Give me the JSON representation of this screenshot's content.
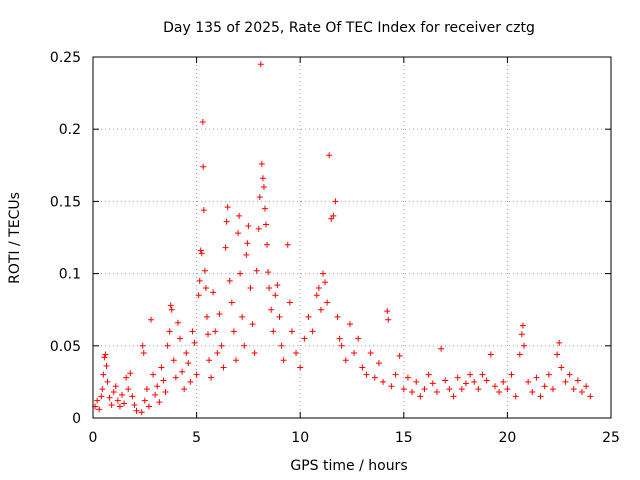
{
  "chart_data": {
    "type": "scatter",
    "title": "Day 135 of 2025, Rate Of TEC Index for receiver cztg",
    "xlabel": "GPS time / hours",
    "ylabel": "ROTI / TECUs",
    "xlim": [
      0,
      25
    ],
    "ylim": [
      0,
      0.25
    ],
    "x_ticks": [
      0,
      5,
      10,
      15,
      20,
      25
    ],
    "y_ticks": [
      0,
      0.05,
      0.1,
      0.15,
      0.2,
      0.25
    ],
    "x_tick_labels": [
      "0",
      "5",
      "10",
      "15",
      "20",
      "25"
    ],
    "y_tick_labels": [
      "0",
      "0.05",
      "0.1",
      "0.15",
      "0.2",
      "0.25"
    ],
    "grid": true,
    "marker": "plus",
    "color": "#ff0000",
    "series": [
      {
        "name": "ROTI",
        "points": [
          [
            0.1,
            0.008
          ],
          [
            0.2,
            0.012
          ],
          [
            0.3,
            0.006
          ],
          [
            0.4,
            0.015
          ],
          [
            0.45,
            0.02
          ],
          [
            0.5,
            0.03
          ],
          [
            0.55,
            0.042
          ],
          [
            0.6,
            0.044
          ],
          [
            0.65,
            0.036
          ],
          [
            0.7,
            0.025
          ],
          [
            0.8,
            0.014
          ],
          [
            0.9,
            0.009
          ],
          [
            1.0,
            0.018
          ],
          [
            1.1,
            0.022
          ],
          [
            1.2,
            0.012
          ],
          [
            1.3,
            0.008
          ],
          [
            1.4,
            0.016
          ],
          [
            1.5,
            0.01
          ],
          [
            1.6,
            0.028
          ],
          [
            1.7,
            0.02
          ],
          [
            1.8,
            0.031
          ],
          [
            1.9,
            0.015
          ],
          [
            2.0,
            0.009
          ],
          [
            2.1,
            0.005
          ],
          [
            2.35,
            0.004
          ],
          [
            2.4,
            0.05
          ],
          [
            2.45,
            0.045
          ],
          [
            2.5,
            0.012
          ],
          [
            2.6,
            0.02
          ],
          [
            2.7,
            0.008
          ],
          [
            2.8,
            0.068
          ],
          [
            2.9,
            0.03
          ],
          [
            3.0,
            0.016
          ],
          [
            3.1,
            0.022
          ],
          [
            3.2,
            0.011
          ],
          [
            3.3,
            0.035
          ],
          [
            3.4,
            0.026
          ],
          [
            3.5,
            0.018
          ],
          [
            3.6,
            0.05
          ],
          [
            3.7,
            0.06
          ],
          [
            3.75,
            0.078
          ],
          [
            3.8,
            0.075
          ],
          [
            3.9,
            0.04
          ],
          [
            4.0,
            0.028
          ],
          [
            4.1,
            0.066
          ],
          [
            4.2,
            0.055
          ],
          [
            4.3,
            0.032
          ],
          [
            4.4,
            0.02
          ],
          [
            4.5,
            0.045
          ],
          [
            4.6,
            0.038
          ],
          [
            4.7,
            0.025
          ],
          [
            4.8,
            0.06
          ],
          [
            4.9,
            0.052
          ],
          [
            5.0,
            0.03
          ],
          [
            5.1,
            0.085
          ],
          [
            5.15,
            0.095
          ],
          [
            5.2,
            0.116
          ],
          [
            5.25,
            0.114
          ],
          [
            5.3,
            0.205
          ],
          [
            5.32,
            0.174
          ],
          [
            5.35,
            0.144
          ],
          [
            5.4,
            0.102
          ],
          [
            5.45,
            0.09
          ],
          [
            5.5,
            0.07
          ],
          [
            5.55,
            0.058
          ],
          [
            5.6,
            0.04
          ],
          [
            5.7,
            0.028
          ],
          [
            5.8,
            0.087
          ],
          [
            5.9,
            0.06
          ],
          [
            6.0,
            0.045
          ],
          [
            6.1,
            0.072
          ],
          [
            6.2,
            0.05
          ],
          [
            6.3,
            0.035
          ],
          [
            6.4,
            0.118
          ],
          [
            6.45,
            0.136
          ],
          [
            6.5,
            0.146
          ],
          [
            6.6,
            0.095
          ],
          [
            6.7,
            0.08
          ],
          [
            6.8,
            0.06
          ],
          [
            6.9,
            0.04
          ],
          [
            7.0,
            0.128
          ],
          [
            7.05,
            0.14
          ],
          [
            7.1,
            0.1
          ],
          [
            7.2,
            0.07
          ],
          [
            7.3,
            0.05
          ],
          [
            7.4,
            0.113
          ],
          [
            7.45,
            0.121
          ],
          [
            7.5,
            0.133
          ],
          [
            7.6,
            0.09
          ],
          [
            7.7,
            0.065
          ],
          [
            7.8,
            0.045
          ],
          [
            7.9,
            0.102
          ],
          [
            8.0,
            0.131
          ],
          [
            8.05,
            0.153
          ],
          [
            8.1,
            0.245
          ],
          [
            8.15,
            0.176
          ],
          [
            8.2,
            0.166
          ],
          [
            8.25,
            0.16
          ],
          [
            8.3,
            0.145
          ],
          [
            8.35,
            0.134
          ],
          [
            8.4,
            0.12
          ],
          [
            8.45,
            0.101
          ],
          [
            8.5,
            0.09
          ],
          [
            8.6,
            0.075
          ],
          [
            8.7,
            0.06
          ],
          [
            8.8,
            0.085
          ],
          [
            8.9,
            0.092
          ],
          [
            9.0,
            0.07
          ],
          [
            9.1,
            0.05
          ],
          [
            9.2,
            0.04
          ],
          [
            9.4,
            0.12
          ],
          [
            9.5,
            0.08
          ],
          [
            9.6,
            0.06
          ],
          [
            9.8,
            0.045
          ],
          [
            10.0,
            0.035
          ],
          [
            10.2,
            0.055
          ],
          [
            10.4,
            0.07
          ],
          [
            10.6,
            0.06
          ],
          [
            10.8,
            0.085
          ],
          [
            10.9,
            0.09
          ],
          [
            11.0,
            0.075
          ],
          [
            11.1,
            0.1
          ],
          [
            11.2,
            0.094
          ],
          [
            11.3,
            0.08
          ],
          [
            11.4,
            0.182
          ],
          [
            11.5,
            0.138
          ],
          [
            11.6,
            0.14
          ],
          [
            11.7,
            0.15
          ],
          [
            11.8,
            0.07
          ],
          [
            11.9,
            0.055
          ],
          [
            12.0,
            0.05
          ],
          [
            12.2,
            0.04
          ],
          [
            12.4,
            0.065
          ],
          [
            12.6,
            0.045
          ],
          [
            12.8,
            0.055
          ],
          [
            13.0,
            0.035
          ],
          [
            13.2,
            0.03
          ],
          [
            13.4,
            0.045
          ],
          [
            13.6,
            0.028
          ],
          [
            13.8,
            0.038
          ],
          [
            14.0,
            0.025
          ],
          [
            14.2,
            0.074
          ],
          [
            14.25,
            0.068
          ],
          [
            14.4,
            0.022
          ],
          [
            14.6,
            0.03
          ],
          [
            14.8,
            0.043
          ],
          [
            15.0,
            0.02
          ],
          [
            15.2,
            0.028
          ],
          [
            15.4,
            0.018
          ],
          [
            15.6,
            0.025
          ],
          [
            15.8,
            0.015
          ],
          [
            16.0,
            0.02
          ],
          [
            16.2,
            0.03
          ],
          [
            16.4,
            0.024
          ],
          [
            16.6,
            0.018
          ],
          [
            16.8,
            0.048
          ],
          [
            17.0,
            0.026
          ],
          [
            17.2,
            0.02
          ],
          [
            17.4,
            0.015
          ],
          [
            17.6,
            0.028
          ],
          [
            17.8,
            0.02
          ],
          [
            18.0,
            0.024
          ],
          [
            18.2,
            0.03
          ],
          [
            18.4,
            0.025
          ],
          [
            18.6,
            0.02
          ],
          [
            18.8,
            0.03
          ],
          [
            19.0,
            0.026
          ],
          [
            19.2,
            0.044
          ],
          [
            19.4,
            0.022
          ],
          [
            19.6,
            0.018
          ],
          [
            19.8,
            0.025
          ],
          [
            20.0,
            0.02
          ],
          [
            20.2,
            0.03
          ],
          [
            20.4,
            0.015
          ],
          [
            20.6,
            0.044
          ],
          [
            20.7,
            0.058
          ],
          [
            20.75,
            0.064
          ],
          [
            20.8,
            0.05
          ],
          [
            21.0,
            0.025
          ],
          [
            21.2,
            0.018
          ],
          [
            21.4,
            0.028
          ],
          [
            21.6,
            0.015
          ],
          [
            21.8,
            0.022
          ],
          [
            22.0,
            0.03
          ],
          [
            22.2,
            0.02
          ],
          [
            22.4,
            0.044
          ],
          [
            22.5,
            0.052
          ],
          [
            22.6,
            0.035
          ],
          [
            22.8,
            0.025
          ],
          [
            23.0,
            0.03
          ],
          [
            23.2,
            0.02
          ],
          [
            23.4,
            0.026
          ],
          [
            23.6,
            0.018
          ],
          [
            23.8,
            0.022
          ],
          [
            24.0,
            0.015
          ]
        ]
      }
    ]
  }
}
